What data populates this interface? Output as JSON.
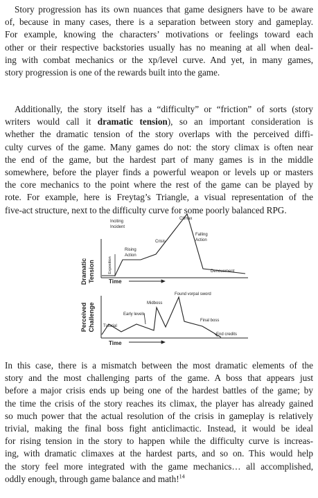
{
  "paragraphs": {
    "p1": [
      "Story progression has its own nuances that game designers have to be aware",
      "of, because in many cases, there is a separation between story and gameplay.",
      "For example, knowing the characters’ motivations or feelings toward each",
      "other or their respective backstories usually has no meaning at all when deal-",
      "ing with combat mechanics or the xp/level curve. And yet, in many games,",
      "story progression is one of the rewards built into the game."
    ],
    "p2": {
      "l1": "Additionally, the story itself has a “difficulty” or “friction” of sorts (story",
      "l2_pre": "writers would call it ",
      "l2_bold": "dramatic tension",
      "l2_post": "), so an important consideration is",
      "rest": [
        "whether the dramatic tension of the story overlaps with the perceived diffi-",
        "culty curves of the game. Many games do not: the story climax is often near",
        "the end of the game, but the hardest part of many games is in the middle",
        "somewhere, before the player finds a powerful weapon or levels up or masters",
        "the core mechanics to the point where the rest of the game can be played by",
        "rote. For example, here is Freytag’s Triangle, a visual representation of the",
        "five-act structure, next to the difficulty curve for some poorly balanced RPG."
      ]
    },
    "p3": [
      "In this case, there is a mismatch between the most dramatic elements of the",
      "story and the most challenging parts of the game. A boss that appears just",
      "before a major crisis ends up being one of the hardest battles of the game; by",
      "the time the crisis of the story reaches its climax, the player has already gained",
      "so much power that the actual resolution of the crisis in gameplay is relatively",
      "trivial, making the final boss fight anticlimactic. Instead, it would be ideal",
      "for rising tension in the story to happen while the difficulty curve is increas-",
      "ing, with dramatic climaxes at the hardest parts, and so on. This would help",
      "the story feel more integrated with the game mechanics… all accomplished,"
    ],
    "p3_last": "oddly enough, through game balance and math!",
    "footnote_ref": "14"
  },
  "figure": {
    "top": {
      "ylabel_1": "Dramatic",
      "ylabel_2": "Tension",
      "exposition": "Exposition",
      "inciting_1": "Inciting",
      "inciting_2": "Incident",
      "rising_1": "Rising",
      "rising_2": "Action",
      "crisis": "Crisis",
      "climax": "Climax",
      "falling_1": "Falling",
      "falling_2": "Action",
      "denouement": "Denouement",
      "xlabel": "Time"
    },
    "bottom": {
      "ylabel_1": "Perceived",
      "ylabel_2": "Challenge",
      "tutorial": "Tutorial",
      "early_levels": "Early levels",
      "midboss": "Midboss",
      "vorpal": "Found vorpal sword",
      "final_boss": "Final boss",
      "end_credits": "End credits",
      "xlabel": "Time"
    }
  }
}
